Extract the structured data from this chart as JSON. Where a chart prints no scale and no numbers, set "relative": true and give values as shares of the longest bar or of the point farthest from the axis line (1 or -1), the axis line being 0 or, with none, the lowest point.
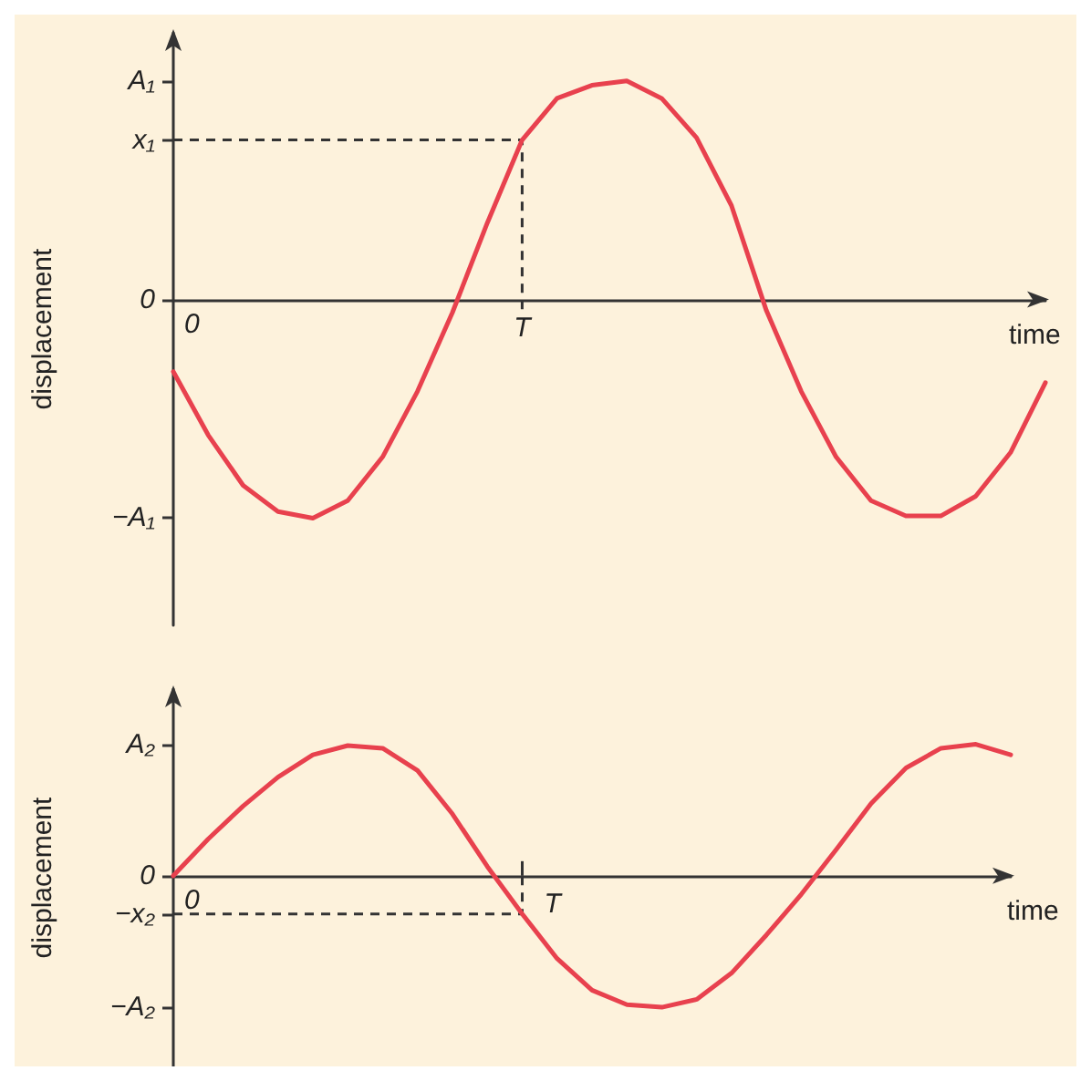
{
  "chart_data": [
    {
      "type": "line",
      "relative": true,
      "xlabel": "time",
      "ylabel": "displacement",
      "grid": false,
      "marker": "none",
      "annotations": [
        "A₁",
        "x₁",
        "0",
        "−A₁",
        "0",
        "T"
      ],
      "categories": [
        null,
        null,
        null,
        null,
        null,
        null,
        null,
        null,
        null,
        null,
        null,
        null,
        null,
        null,
        null,
        null,
        null,
        null,
        null,
        null,
        null,
        null,
        null,
        null,
        null,
        null
      ],
      "series": [
        {
          "color": "#e8414e",
          "values": [
            -0.33,
            -0.62,
            -0.85,
            -0.97,
            -1,
            -0.92,
            -0.72,
            -0.42,
            -0.06,
            0.35,
            0.73,
            0.92,
            0.98,
            1,
            0.92,
            0.74,
            0.43,
            -0.05,
            -0.42,
            -0.72,
            -0.92,
            -0.99,
            -0.99,
            -0.9,
            -0.7,
            -0.38
          ]
        }
      ]
    },
    {
      "type": "line",
      "relative": true,
      "xlabel": "time",
      "ylabel": "displacement",
      "grid": false,
      "marker": "none",
      "annotations": [
        "A₂",
        "0",
        "−x₂",
        "−A₂",
        "0",
        "T"
      ],
      "categories": [
        null,
        null,
        null,
        null,
        null,
        null,
        null,
        null,
        null,
        null,
        null,
        null,
        null,
        null,
        null,
        null,
        null,
        null,
        null,
        null,
        null,
        null,
        null,
        null,
        null
      ],
      "series": [
        {
          "color": "#e8414e",
          "values": [
            0,
            0.28,
            0.53,
            0.75,
            0.92,
            0.99,
            0.97,
            0.8,
            0.47,
            0.07,
            -0.29,
            -0.63,
            -0.87,
            -0.98,
            -1,
            -0.94,
            -0.74,
            -0.45,
            -0.14,
            0.2,
            0.55,
            0.82,
            0.97,
            1,
            0.92
          ]
        }
      ]
    }
  ]
}
